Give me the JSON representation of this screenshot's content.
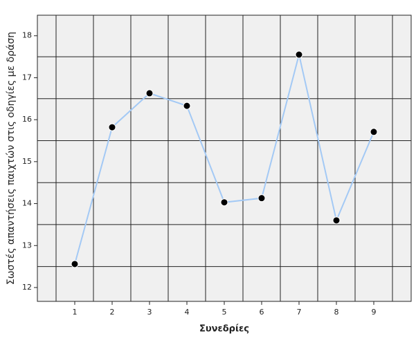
{
  "chart_data": {
    "type": "line",
    "x_label": "Συνεδρίες",
    "y_label": "Σωστές απαντήσεις παιχτών στις οδηγίες με δράση",
    "x": [
      1,
      2,
      3,
      4,
      5,
      6,
      7,
      8,
      9
    ],
    "series": [
      {
        "color": "#a3c9f5",
        "values": [
          12.56,
          15.82,
          16.63,
          16.33,
          14.03,
          14.13,
          17.55,
          13.6,
          15.71
        ]
      }
    ],
    "xlim": [
      0,
      10
    ],
    "xticks": [
      1,
      2,
      3,
      4,
      5,
      6,
      7,
      8,
      9
    ],
    "ylim": [
      11.67,
      18.49
    ],
    "yticks": [
      12,
      13,
      14,
      15,
      16,
      17,
      18
    ],
    "grid": true
  }
}
